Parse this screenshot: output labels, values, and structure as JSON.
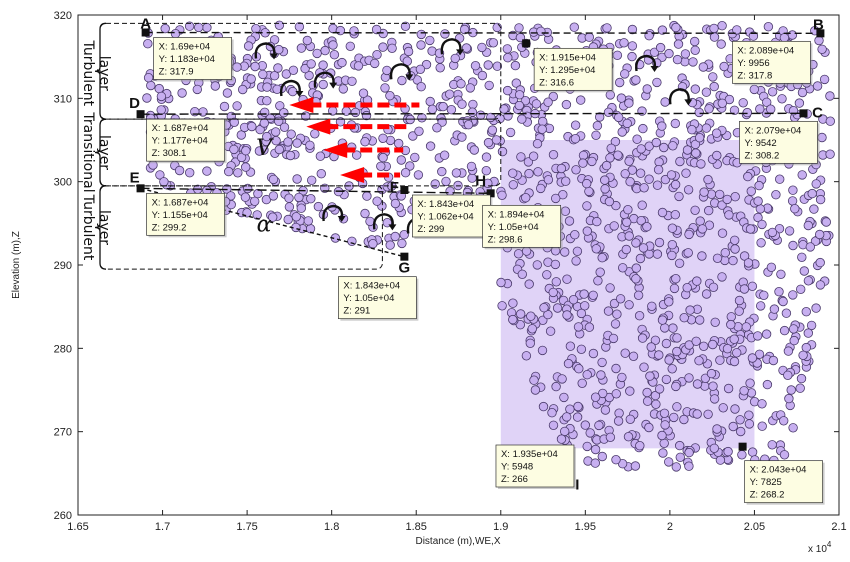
{
  "chart_data": {
    "type": "scatter",
    "title": "",
    "xlabel": "Distance (m),WE,X",
    "ylabel": "Elevation (m),Z",
    "x_exponent_label": "x 10",
    "x_exponent_power": "4",
    "xlim": [
      16500,
      21000
    ],
    "ylim": [
      260,
      320
    ],
    "x_tick_labels": [
      "1.65",
      "1.7",
      "1.75",
      "1.8",
      "1.85",
      "1.9",
      "1.95",
      "2",
      "2.05",
      "2.1"
    ],
    "x_tick_values": [
      16500,
      17000,
      17500,
      18000,
      18500,
      19000,
      19500,
      20000,
      20500,
      21000
    ],
    "y_tick_labels": [
      "260",
      "270",
      "280",
      "290",
      "300",
      "310",
      "320"
    ],
    "y_tick_values": [
      260,
      270,
      280,
      290,
      300,
      310,
      320
    ],
    "marker_fill": "#c7aff0",
    "marker_edge": "#4a3a6a",
    "series": [
      {
        "points": [
          {
            "x": 16900,
            "y": 317.9
          },
          {
            "x": 16870,
            "y": 308.1
          },
          {
            "x": 16870,
            "y": 299.2
          },
          {
            "x": 18430,
            "y": 299
          },
          {
            "x": 18940,
            "y": 298.6
          },
          {
            "x": 18430,
            "y": 291
          },
          {
            "x": 19150,
            "y": 316.6
          },
          {
            "x": 20890,
            "y": 317.8
          },
          {
            "x": 20790,
            "y": 308.2
          },
          {
            "x": 19350,
            "y": 266
          },
          {
            "x": 20430,
            "y": 268.2
          }
        ]
      }
    ],
    "point_labels": [
      {
        "text": "A",
        "x": 16900,
        "y": 317.9
      },
      {
        "text": "B",
        "x": 20890,
        "y": 317.8
      },
      {
        "text": "C",
        "x": 20790,
        "y": 308.2
      },
      {
        "text": "D",
        "x": 16870,
        "y": 308.1
      },
      {
        "text": "E",
        "x": 16870,
        "y": 299.2
      },
      {
        "text": "F",
        "x": 18430,
        "y": 299
      },
      {
        "text": "G",
        "x": 18430,
        "y": 291
      },
      {
        "text": "H",
        "x": 18940,
        "y": 298.6
      },
      {
        "text": "I",
        "x": 19500,
        "y": 265
      }
    ],
    "datatips": [
      {
        "x": 16900,
        "y": 317.9,
        "lines": [
          "X: 1.69e+04",
          "Y: 1.183e+04",
          "Z: 317.9"
        ]
      },
      {
        "x": 16870,
        "y": 308.1,
        "lines": [
          "X: 1.687e+04",
          "Y: 1.177e+04",
          "Z: 308.1"
        ]
      },
      {
        "x": 16870,
        "y": 299.2,
        "lines": [
          "X: 1.687e+04",
          "Y: 1.155e+04",
          "Z: 299.2"
        ]
      },
      {
        "x": 18430,
        "y": 299,
        "lines": [
          "X: 1.843e+04",
          "Y: 1.062e+04",
          "Z: 299"
        ]
      },
      {
        "x": 18430,
        "y": 291,
        "lines": [
          "X: 1.843e+04",
          "Y: 1.05e+04",
          "Z: 291"
        ]
      },
      {
        "x": 19150,
        "y": 316.6,
        "lines": [
          "X: 1.915e+04",
          "Y: 1.295e+04",
          "Z: 316.6"
        ]
      },
      {
        "x": 18940,
        "y": 298.6,
        "lines": [
          "X: 1.894e+04",
          "Y: 1.05e+04",
          "Z: 298.6"
        ]
      },
      {
        "x": 20890,
        "y": 317.8,
        "lines": [
          "X: 2.089e+04",
          "Y: 9956",
          "Z: 317.8"
        ]
      },
      {
        "x": 20790,
        "y": 308.2,
        "lines": [
          "X: 2.079e+04",
          "Y: 9542",
          "Z: 308.2"
        ]
      },
      {
        "x": 19350,
        "y": 266,
        "lines": [
          "X: 1.935e+04",
          "Y: 5948",
          "Z: 266"
        ]
      },
      {
        "x": 20430,
        "y": 268.2,
        "lines": [
          "X: 2.043e+04",
          "Y: 7825",
          "Z: 268.2"
        ]
      }
    ],
    "layer_labels": [
      {
        "lines": [
          "Turbulent",
          "layer"
        ]
      },
      {
        "lines": [
          "Transitional",
          "layer"
        ]
      },
      {
        "lines": [
          "Turbulent",
          "layer"
        ]
      }
    ],
    "annotation_symbols": [
      {
        "text": "V"
      },
      {
        "text": "α"
      }
    ],
    "grid": false,
    "legend": "none",
    "arrow_color": "#ff0000"
  }
}
